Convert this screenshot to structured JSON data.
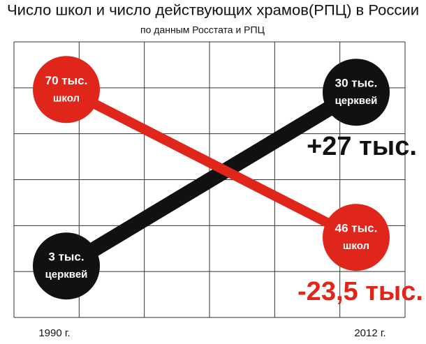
{
  "chart_data": {
    "type": "line",
    "title": "Число школ и число действующих храмов(РПЦ) в России",
    "subtitle": "по данным Росстата и РПЦ",
    "categories": [
      "1990 г.",
      "2012 г."
    ],
    "series": [
      {
        "name": "церквей",
        "color": "#111111",
        "values": [
          3,
          30
        ],
        "value_labels": [
          "3 тыс.",
          "30 тыс."
        ],
        "axis": "y2"
      },
      {
        "name": "школ",
        "color": "#e0251b",
        "values": [
          70,
          46
        ],
        "value_labels": [
          "70 тыс.",
          "46 тыс."
        ]
      }
    ],
    "ylim": [
      33,
      80
    ],
    "y2lim": [
      -5,
      40
    ],
    "grid": true,
    "annotations": [
      {
        "text": "+27 тыс.",
        "color": "#111111"
      },
      {
        "text": "-23,5 тыс.",
        "color": "#e0251b"
      }
    ]
  }
}
